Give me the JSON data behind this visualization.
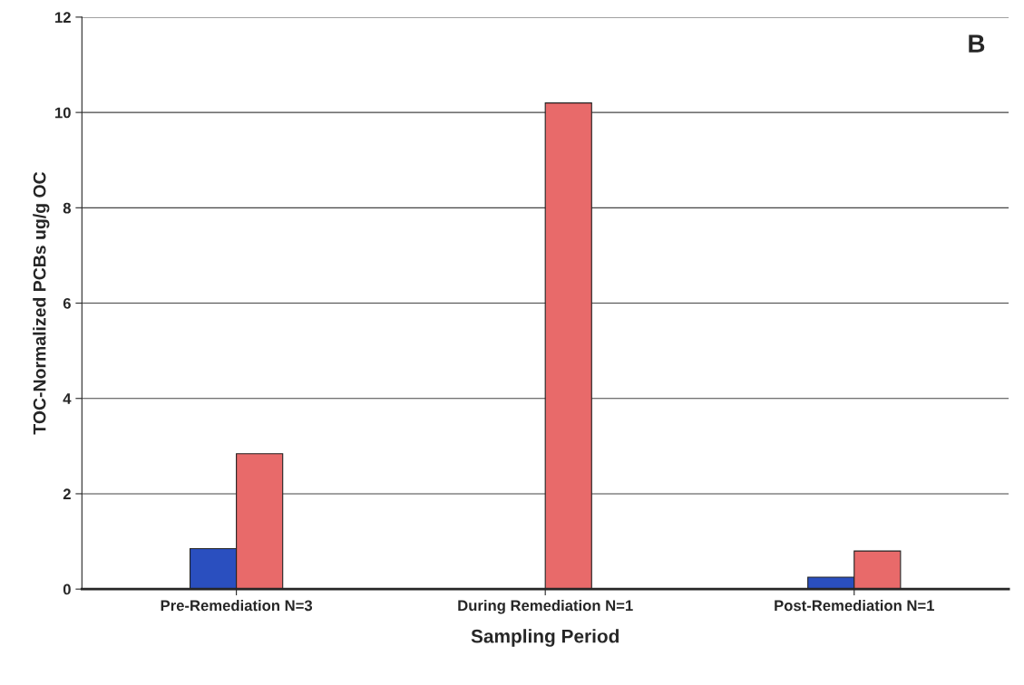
{
  "chart_data": {
    "type": "bar",
    "xlabel": "Sampling Period",
    "ylabel": "TOC-Normalized PCBs ug/g OC",
    "categories": [
      "Pre-Remediation N=3",
      "During Remediation N=1",
      "Post-Remediation N=1"
    ],
    "series": [
      {
        "color": "#2a4fbf",
        "values": [
          0.85,
          null,
          0.25
        ]
      },
      {
        "color": "#e86a6a",
        "values": [
          2.84,
          10.2,
          0.8
        ]
      }
    ],
    "ylim": [
      0,
      12
    ],
    "yticks": [
      0,
      2,
      4,
      6,
      8,
      10,
      12
    ],
    "grid": "y",
    "annotations": [
      "B"
    ]
  }
}
